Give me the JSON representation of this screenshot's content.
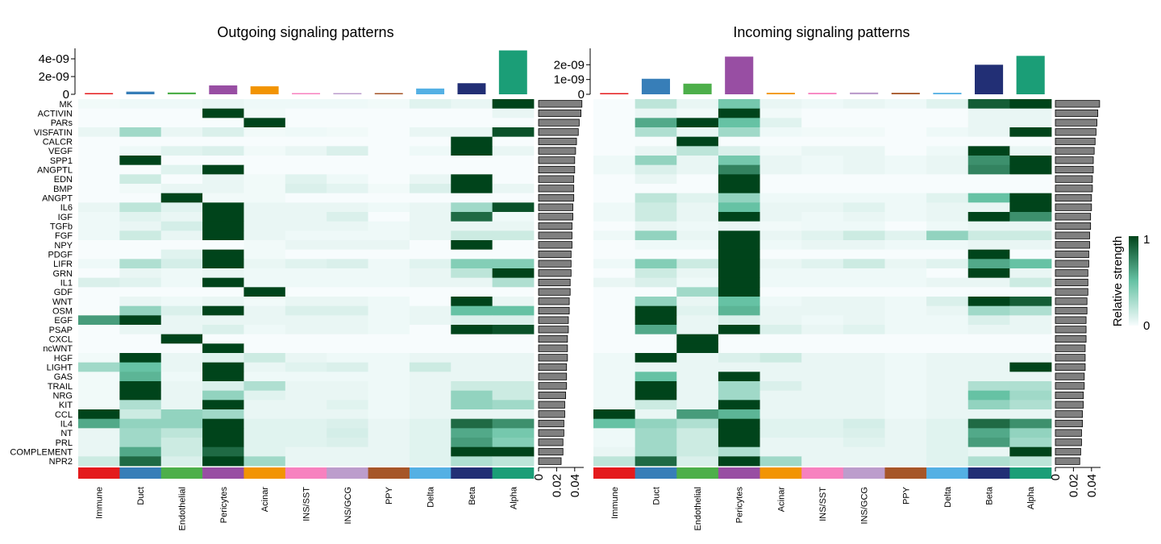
{
  "chart_data": [
    {
      "type": "heatmap",
      "title": "Outgoing signaling patterns",
      "top_bar_axis": {
        "ylim": [
          0,
          5e-09
        ],
        "ticks": [
          "0",
          "2e-09",
          "4e-09"
        ]
      },
      "right_bar_axis": {
        "xlim": [
          0,
          0.05
        ],
        "ticks": [
          "0",
          "0.02",
          "0.04"
        ]
      },
      "cell_types": [
        "Immune",
        "Duct",
        "Endothelial",
        "Pericytes",
        "Acinar",
        "INS/SST",
        "INS/GCG",
        "PPY",
        "Delta",
        "Beta",
        "Alpha"
      ],
      "pathways": [
        "MK",
        "ACTIVIN",
        "PARs",
        "VISFATIN",
        "CALCR",
        "VEGF",
        "SPP1",
        "ANGPTL",
        "EDN",
        "BMP",
        "ANGPT",
        "IL6",
        "IGF",
        "TGFb",
        "FGF",
        "NPY",
        "PDGF",
        "LIFR",
        "GRN",
        "IL1",
        "GDF",
        "WNT",
        "OSM",
        "EGF",
        "PSAP",
        "CXCL",
        "ncWNT",
        "HGF",
        "LIGHT",
        "GAS",
        "TRAIL",
        "NRG",
        "KIT",
        "CCL",
        "IL4",
        "NT",
        "PRL",
        "COMPLEMENT",
        "NPR2"
      ],
      "top_bar_values": [
        8e-11,
        3e-10,
        2e-10,
        1e-09,
        9e-10,
        1e-10,
        1e-10,
        1e-10,
        6.5e-10,
        1.25e-09,
        4.95e-09
      ],
      "right_bar_values": [
        0.048,
        0.047,
        0.045,
        0.044,
        0.042,
        0.041,
        0.04,
        0.04,
        0.039,
        0.039,
        0.039,
        0.038,
        0.038,
        0.037,
        0.037,
        0.037,
        0.036,
        0.036,
        0.036,
        0.035,
        0.035,
        0.034,
        0.034,
        0.033,
        0.033,
        0.032,
        0.032,
        0.032,
        0.031,
        0.031,
        0.031,
        0.03,
        0.029,
        0.029,
        0.028,
        0.028,
        0.027,
        0.027,
        0.025
      ],
      "matrix": [
        [
          0.02,
          0.03,
          0.03,
          0.05,
          0.03,
          0.03,
          0.03,
          0.02,
          0.08,
          0.05,
          1.0
        ],
        [
          0.0,
          0.0,
          0.0,
          1.0,
          0.02,
          0.0,
          0.0,
          0.0,
          0.0,
          0.0,
          0.05
        ],
        [
          0.0,
          0.0,
          0.0,
          0.0,
          1.0,
          0.0,
          0.0,
          0.0,
          0.0,
          0.0,
          0.0
        ],
        [
          0.05,
          0.3,
          0.05,
          0.1,
          0.02,
          0.03,
          0.02,
          0.0,
          0.05,
          0.05,
          0.95
        ],
        [
          0.0,
          0.0,
          0.0,
          0.0,
          0.0,
          0.0,
          0.0,
          0.0,
          0.0,
          1.0,
          0.0
        ],
        [
          0.0,
          0.03,
          0.08,
          0.1,
          0.02,
          0.05,
          0.1,
          0.0,
          0.03,
          1.0,
          0.05
        ],
        [
          0.0,
          1.0,
          0.0,
          0.0,
          0.0,
          0.0,
          0.0,
          0.0,
          0.0,
          0.0,
          0.0
        ],
        [
          0.0,
          0.0,
          0.08,
          1.0,
          0.0,
          0.0,
          0.0,
          0.0,
          0.0,
          0.0,
          0.0
        ],
        [
          0.0,
          0.15,
          0.0,
          0.05,
          0.02,
          0.08,
          0.03,
          0.0,
          0.05,
          1.0,
          0.0
        ],
        [
          0.0,
          0.02,
          0.05,
          0.05,
          0.02,
          0.1,
          0.07,
          0.02,
          0.1,
          1.0,
          0.05
        ],
        [
          0.0,
          0.0,
          1.0,
          0.02,
          0.02,
          0.0,
          0.0,
          0.0,
          0.0,
          0.0,
          0.0
        ],
        [
          0.05,
          0.2,
          0.08,
          1.0,
          0.05,
          0.05,
          0.05,
          0.03,
          0.05,
          0.3,
          0.95
        ],
        [
          0.03,
          0.08,
          0.05,
          1.0,
          0.05,
          0.05,
          0.1,
          0.0,
          0.05,
          0.85,
          0.03
        ],
        [
          0.03,
          0.05,
          0.12,
          1.0,
          0.05,
          0.05,
          0.05,
          0.03,
          0.05,
          0.05,
          0.05
        ],
        [
          0.03,
          0.15,
          0.05,
          1.0,
          0.05,
          0.03,
          0.03,
          0.03,
          0.05,
          0.15,
          0.15
        ],
        [
          0.0,
          0.0,
          0.0,
          0.0,
          0.02,
          0.05,
          0.05,
          0.05,
          0.0,
          1.0,
          0.0
        ],
        [
          0.0,
          0.0,
          0.08,
          1.0,
          0.02,
          0.0,
          0.0,
          0.0,
          0.0,
          0.0,
          0.0
        ],
        [
          0.03,
          0.25,
          0.12,
          1.0,
          0.05,
          0.08,
          0.1,
          0.03,
          0.08,
          0.4,
          0.4
        ],
        [
          0.0,
          0.05,
          0.03,
          0.05,
          0.03,
          0.03,
          0.03,
          0.03,
          0.05,
          0.2,
          1.0
        ],
        [
          0.1,
          0.08,
          0.03,
          1.0,
          0.03,
          0.03,
          0.03,
          0.03,
          0.05,
          0.05,
          0.25
        ],
        [
          0.0,
          0.0,
          0.0,
          0.0,
          1.0,
          0.0,
          0.0,
          0.0,
          0.0,
          0.0,
          0.0
        ],
        [
          0.0,
          0.05,
          0.03,
          0.05,
          0.02,
          0.05,
          0.05,
          0.03,
          0.0,
          1.0,
          0.05
        ],
        [
          0.0,
          0.35,
          0.1,
          1.0,
          0.05,
          0.1,
          0.1,
          0.03,
          0.05,
          0.5,
          0.5
        ],
        [
          0.65,
          1.0,
          0.05,
          0.05,
          0.05,
          0.05,
          0.05,
          0.03,
          0.05,
          0.1,
          0.1
        ],
        [
          0.0,
          0.05,
          0.05,
          0.1,
          0.03,
          0.05,
          0.05,
          0.03,
          0.0,
          1.0,
          0.95
        ],
        [
          0.0,
          0.0,
          1.0,
          0.0,
          0.0,
          0.0,
          0.0,
          0.0,
          0.0,
          0.0,
          0.0
        ],
        [
          0.0,
          0.0,
          0.0,
          1.0,
          0.0,
          0.0,
          0.0,
          0.0,
          0.0,
          0.0,
          0.0
        ],
        [
          0.02,
          1.0,
          0.05,
          0.08,
          0.15,
          0.05,
          0.03,
          0.03,
          0.05,
          0.05,
          0.05
        ],
        [
          0.3,
          0.5,
          0.05,
          1.0,
          0.05,
          0.08,
          0.1,
          0.03,
          0.15,
          0.05,
          0.05
        ],
        [
          0.02,
          0.55,
          0.03,
          1.0,
          0.03,
          0.03,
          0.03,
          0.03,
          0.05,
          0.05,
          0.05
        ],
        [
          0.02,
          1.0,
          0.05,
          0.1,
          0.25,
          0.05,
          0.05,
          0.03,
          0.05,
          0.15,
          0.15
        ],
        [
          0.02,
          1.0,
          0.05,
          0.35,
          0.08,
          0.05,
          0.05,
          0.03,
          0.05,
          0.35,
          0.15
        ],
        [
          0.02,
          0.25,
          0.05,
          1.0,
          0.05,
          0.05,
          0.08,
          0.03,
          0.05,
          0.35,
          0.3
        ],
        [
          1.0,
          0.15,
          0.35,
          0.3,
          0.05,
          0.05,
          0.05,
          0.03,
          0.05,
          0.05,
          0.05
        ],
        [
          0.6,
          0.35,
          0.35,
          1.0,
          0.08,
          0.08,
          0.1,
          0.05,
          0.08,
          0.85,
          0.7
        ],
        [
          0.05,
          0.3,
          0.2,
          1.0,
          0.08,
          0.08,
          0.12,
          0.05,
          0.08,
          0.6,
          0.45
        ],
        [
          0.05,
          0.3,
          0.15,
          1.0,
          0.08,
          0.08,
          0.1,
          0.05,
          0.08,
          0.65,
          0.4
        ],
        [
          0.05,
          0.6,
          0.15,
          0.85,
          0.08,
          0.05,
          0.05,
          0.05,
          0.08,
          1.0,
          1.0
        ],
        [
          0.15,
          0.85,
          0.1,
          1.0,
          0.3,
          0.05,
          0.05,
          0.05,
          0.08,
          0.25,
          0.2
        ]
      ]
    },
    {
      "type": "heatmap",
      "title": "Incoming signaling patterns",
      "top_bar_axis": {
        "ylim": [
          0,
          3e-09
        ],
        "ticks": [
          "0",
          "1e-09",
          "2e-09"
        ]
      },
      "right_bar_axis": {
        "xlim": [
          0,
          0.05
        ],
        "ticks": [
          "0",
          "0.02",
          "0.04"
        ]
      },
      "cell_types": [
        "Immune",
        "Duct",
        "Endothelial",
        "Pericytes",
        "Acinar",
        "INS/SST",
        "INS/GCG",
        "PPY",
        "Delta",
        "Beta",
        "Alpha"
      ],
      "pathways": [
        "MK",
        "ACTIVIN",
        "PARs",
        "VISFATIN",
        "CALCR",
        "VEGF",
        "SPP1",
        "ANGPTL",
        "EDN",
        "BMP",
        "ANGPT",
        "IL6",
        "IGF",
        "TGFb",
        "FGF",
        "NPY",
        "PDGF",
        "LIFR",
        "GRN",
        "IL1",
        "GDF",
        "WNT",
        "OSM",
        "EGF",
        "PSAP",
        "CXCL",
        "ncWNT",
        "HGF",
        "LIGHT",
        "GAS",
        "TRAIL",
        "NRG",
        "KIT",
        "CCL",
        "IL4",
        "NT",
        "PRL",
        "COMPLEMENT",
        "NPR2"
      ],
      "top_bar_values": [
        5e-11,
        1.05e-09,
        7.2e-10,
        2.55e-09,
        1e-10,
        1e-10,
        1.2e-10,
        1e-10,
        1e-10,
        2e-09,
        2.6e-09
      ],
      "right_bar_values": [
        0.049,
        0.047,
        0.046,
        0.045,
        0.044,
        0.043,
        0.042,
        0.042,
        0.041,
        0.041,
        0.04,
        0.04,
        0.039,
        0.039,
        0.038,
        0.038,
        0.037,
        0.037,
        0.036,
        0.036,
        0.036,
        0.035,
        0.035,
        0.034,
        0.034,
        0.034,
        0.033,
        0.033,
        0.033,
        0.032,
        0.032,
        0.031,
        0.031,
        0.03,
        0.03,
        0.029,
        0.029,
        0.028,
        0.027
      ],
      "matrix": [
        [
          0.0,
          0.2,
          0.05,
          0.45,
          0.05,
          0.03,
          0.05,
          0.03,
          0.08,
          0.9,
          1.0
        ],
        [
          0.0,
          0.05,
          0.02,
          1.0,
          0.02,
          0.0,
          0.0,
          0.0,
          0.0,
          0.05,
          0.05
        ],
        [
          0.0,
          0.6,
          1.0,
          0.5,
          0.08,
          0.0,
          0.0,
          0.0,
          0.0,
          0.05,
          0.05
        ],
        [
          0.0,
          0.25,
          0.05,
          0.3,
          0.03,
          0.02,
          0.02,
          0.0,
          0.03,
          0.05,
          1.0
        ],
        [
          0.0,
          0.0,
          1.0,
          0.0,
          0.0,
          0.0,
          0.0,
          0.0,
          0.0,
          0.0,
          0.0
        ],
        [
          0.0,
          0.05,
          0.2,
          0.1,
          0.02,
          0.05,
          0.05,
          0.0,
          0.03,
          1.0,
          0.05
        ],
        [
          0.03,
          0.35,
          0.05,
          0.45,
          0.05,
          0.03,
          0.05,
          0.03,
          0.05,
          0.7,
          1.0
        ],
        [
          0.03,
          0.1,
          0.05,
          0.75,
          0.05,
          0.03,
          0.05,
          0.03,
          0.05,
          0.75,
          1.0
        ],
        [
          0.0,
          0.05,
          0.0,
          1.0,
          0.0,
          0.0,
          0.0,
          0.0,
          0.0,
          0.0,
          0.0
        ],
        [
          0.0,
          0.0,
          0.0,
          1.0,
          0.0,
          0.0,
          0.0,
          0.0,
          0.0,
          0.0,
          0.0
        ],
        [
          0.0,
          0.2,
          0.08,
          0.35,
          0.03,
          0.03,
          0.03,
          0.03,
          0.08,
          0.5,
          1.0
        ],
        [
          0.03,
          0.15,
          0.05,
          0.5,
          0.05,
          0.05,
          0.08,
          0.03,
          0.05,
          0.05,
          1.0
        ],
        [
          0.03,
          0.15,
          0.05,
          1.0,
          0.05,
          0.03,
          0.05,
          0.03,
          0.05,
          1.0,
          0.7
        ],
        [
          0.0,
          0.05,
          0.03,
          0.05,
          0.02,
          0.03,
          0.03,
          0.0,
          0.03,
          0.05,
          0.05
        ],
        [
          0.03,
          0.35,
          0.05,
          1.0,
          0.05,
          0.08,
          0.15,
          0.08,
          0.35,
          0.15,
          0.15
        ],
        [
          0.0,
          0.03,
          0.03,
          1.0,
          0.03,
          0.05,
          0.05,
          0.03,
          0.03,
          0.05,
          0.05
        ],
        [
          0.0,
          0.0,
          0.0,
          1.0,
          0.0,
          0.0,
          0.0,
          0.0,
          0.0,
          1.0,
          0.0
        ],
        [
          0.03,
          0.4,
          0.15,
          1.0,
          0.05,
          0.08,
          0.15,
          0.05,
          0.08,
          0.6,
          0.5
        ],
        [
          0.0,
          0.15,
          0.05,
          1.0,
          0.03,
          0.03,
          0.03,
          0.03,
          0.0,
          1.0,
          0.05
        ],
        [
          0.05,
          0.1,
          0.03,
          1.0,
          0.03,
          0.03,
          0.03,
          0.03,
          0.05,
          0.05,
          0.15
        ],
        [
          0.0,
          0.0,
          0.3,
          1.0,
          0.0,
          0.0,
          0.0,
          0.0,
          0.0,
          0.0,
          0.0
        ],
        [
          0.0,
          0.35,
          0.05,
          0.5,
          0.03,
          0.05,
          0.05,
          0.03,
          0.1,
          1.0,
          0.9
        ],
        [
          0.0,
          1.0,
          0.08,
          0.55,
          0.05,
          0.05,
          0.05,
          0.03,
          0.05,
          0.3,
          0.25
        ],
        [
          0.0,
          1.0,
          0.05,
          0.1,
          0.05,
          0.03,
          0.05,
          0.03,
          0.03,
          0.1,
          0.05
        ],
        [
          0.0,
          0.6,
          0.05,
          1.0,
          0.1,
          0.05,
          0.08,
          0.03,
          0.03,
          0.05,
          0.05
        ],
        [
          0.0,
          0.0,
          1.0,
          0.0,
          0.0,
          0.0,
          0.0,
          0.0,
          0.0,
          0.0,
          0.0
        ],
        [
          0.0,
          0.0,
          1.0,
          0.0,
          0.0,
          0.0,
          0.0,
          0.0,
          0.0,
          0.0,
          0.0
        ],
        [
          0.03,
          1.0,
          0.05,
          0.1,
          0.15,
          0.05,
          0.05,
          0.03,
          0.05,
          0.05,
          0.05
        ],
        [
          0.03,
          0.05,
          0.05,
          0.05,
          0.05,
          0.05,
          0.05,
          0.03,
          0.05,
          0.05,
          1.0
        ],
        [
          0.03,
          0.5,
          0.05,
          1.0,
          0.05,
          0.05,
          0.05,
          0.03,
          0.05,
          0.05,
          0.05
        ],
        [
          0.03,
          1.0,
          0.05,
          0.3,
          0.1,
          0.05,
          0.05,
          0.03,
          0.05,
          0.25,
          0.25
        ],
        [
          0.03,
          1.0,
          0.05,
          0.3,
          0.05,
          0.05,
          0.05,
          0.03,
          0.05,
          0.5,
          0.3
        ],
        [
          0.03,
          0.15,
          0.05,
          1.0,
          0.05,
          0.05,
          0.05,
          0.03,
          0.05,
          0.35,
          0.25
        ],
        [
          1.0,
          0.05,
          0.65,
          0.55,
          0.05,
          0.05,
          0.05,
          0.03,
          0.05,
          0.05,
          0.05
        ],
        [
          0.5,
          0.35,
          0.25,
          1.0,
          0.08,
          0.08,
          0.12,
          0.05,
          0.08,
          0.85,
          0.7
        ],
        [
          0.03,
          0.3,
          0.15,
          1.0,
          0.08,
          0.08,
          0.1,
          0.05,
          0.08,
          0.6,
          0.35
        ],
        [
          0.03,
          0.3,
          0.15,
          1.0,
          0.05,
          0.05,
          0.08,
          0.05,
          0.08,
          0.65,
          0.3
        ],
        [
          0.05,
          0.3,
          0.15,
          0.25,
          0.05,
          0.05,
          0.05,
          0.05,
          0.08,
          0.05,
          1.0
        ],
        [
          0.2,
          0.85,
          0.1,
          1.0,
          0.3,
          0.05,
          0.05,
          0.05,
          0.08,
          0.25,
          0.2
        ]
      ]
    }
  ],
  "cell_type_colors": [
    "#E41A1C",
    "#377EB8",
    "#4DAF4A",
    "#984EA3",
    "#F29403",
    "#F781BF",
    "#BC9DCC",
    "#A65628",
    "#54B0E4",
    "#222F75",
    "#1B9E77"
  ],
  "heatmap_colors": {
    "low": "#F7FCFD",
    "mid": "#66C2A4",
    "high": "#00441B"
  },
  "bar_colors": {
    "right_bar_fill": "#808080",
    "right_bar_stroke": "#000000"
  },
  "legend": {
    "title": "Relative strength",
    "max_label": "1",
    "min_label": "0"
  }
}
